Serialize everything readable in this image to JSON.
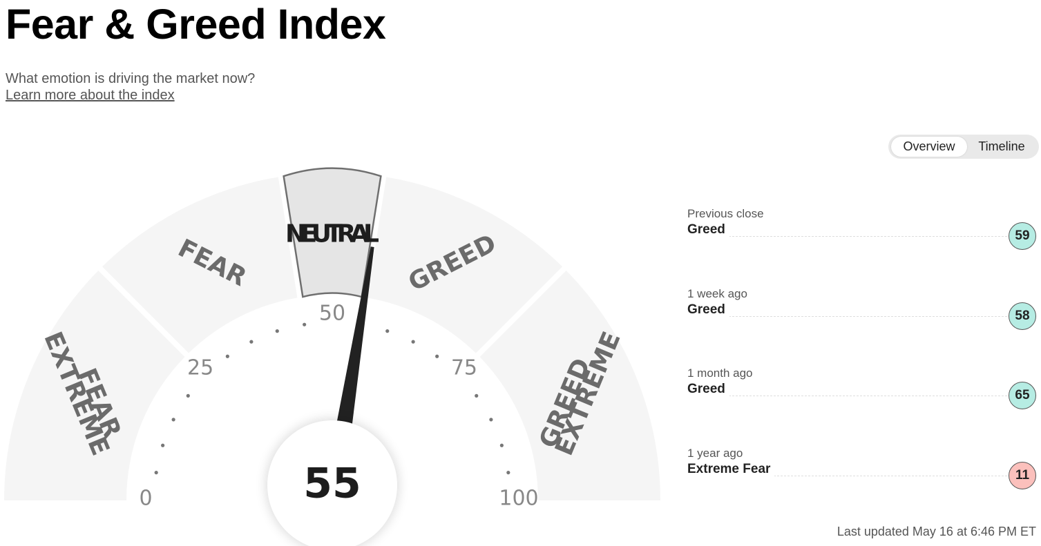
{
  "header": {
    "title": "Fear & Greed Index",
    "subtitle": "What emotion is driving the market now?",
    "learn_more": "Learn more about the index"
  },
  "view_toggle": {
    "overview": "Overview",
    "timeline": "Timeline",
    "active": "Overview"
  },
  "gauge": {
    "value": 55,
    "value_label": "55",
    "current_zone": "NEUTRAL",
    "zones": [
      {
        "name": "extreme-fear",
        "lines": [
          "EXTREME",
          "FEAR"
        ],
        "range": [
          0,
          25
        ]
      },
      {
        "name": "fear",
        "lines": [
          "FEAR"
        ],
        "range": [
          25,
          45
        ]
      },
      {
        "name": "neutral",
        "lines": [
          "NEUTRAL"
        ],
        "range": [
          45,
          55
        ]
      },
      {
        "name": "greed",
        "lines": [
          "GREED"
        ],
        "range": [
          55,
          75
        ]
      },
      {
        "name": "extreme-greed",
        "lines": [
          "EXTREME",
          "GREED"
        ],
        "range": [
          75,
          100
        ]
      }
    ],
    "scale_labels": [
      "0",
      "25",
      "50",
      "75",
      "100"
    ],
    "colors": {
      "zone": "#f5f5f5",
      "active_zone": "#e5e5e5",
      "needle": "#222222",
      "text": "#6b6b6b"
    }
  },
  "history": [
    {
      "label": "Previous close",
      "status": "Greed",
      "value": "59",
      "color": "#b6ece3"
    },
    {
      "label": "1 week ago",
      "status": "Greed",
      "value": "58",
      "color": "#b6ece3"
    },
    {
      "label": "1 month ago",
      "status": "Greed",
      "value": "65",
      "color": "#b6ece3"
    },
    {
      "label": "1 year ago",
      "status": "Extreme Fear",
      "value": "11",
      "color": "#fbc0bc"
    }
  ],
  "last_updated": "Last updated May 16 at 6:46 PM ET"
}
